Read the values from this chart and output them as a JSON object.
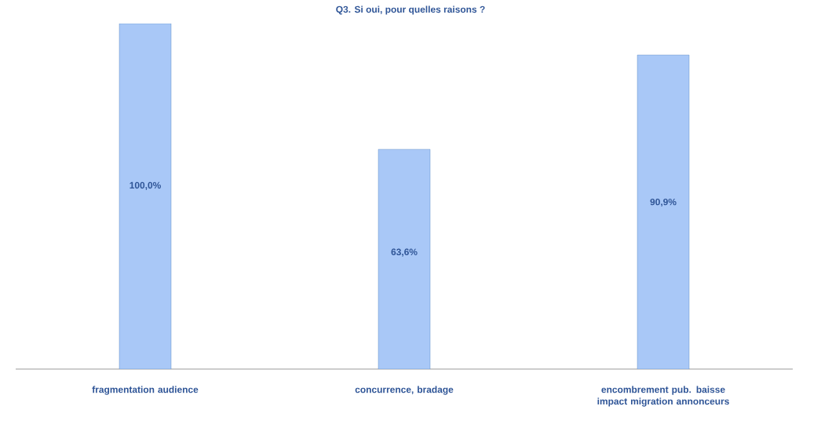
{
  "chart_data": {
    "type": "bar",
    "title": "Q3. Si oui, pour quelles raisons ?",
    "categories": [
      "fragmentation audience",
      "concurrence, bradage",
      "encombrement pub. baisse impact migration annonceurs"
    ],
    "values": [
      100,
      63.6,
      90.9
    ],
    "value_labels": [
      "100,0%",
      "63,6%",
      "90,9%"
    ],
    "color": "#a9c8f7"
  }
}
